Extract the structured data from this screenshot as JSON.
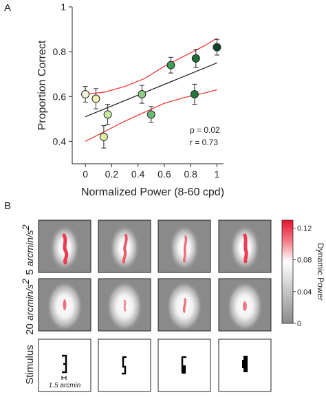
{
  "chart_data": {
    "type": "scatter",
    "panel_label": "A",
    "xlabel": "Normalized Power (8-60 cpd)",
    "ylabel": "Proportion Correct",
    "xlim": [
      -0.1,
      1.05
    ],
    "ylim": [
      0.3,
      1.0
    ],
    "xticks": [
      "0",
      "0.2",
      "0.4",
      "0.6",
      "0.8",
      "1"
    ],
    "yticks": [
      "0.4",
      "0.6",
      "0.8",
      "1"
    ],
    "points": [
      {
        "x": 0.0,
        "y": 0.61,
        "err": 0.035,
        "color": "#f1f4d6"
      },
      {
        "x": 0.08,
        "y": 0.59,
        "err": 0.045,
        "color": "#f0f0b4"
      },
      {
        "x": 0.14,
        "y": 0.42,
        "err": 0.05,
        "color": "#dcefa4"
      },
      {
        "x": 0.17,
        "y": 0.52,
        "err": 0.045,
        "color": "#c6e8a0"
      },
      {
        "x": 0.43,
        "y": 0.61,
        "err": 0.04,
        "color": "#8fcd86"
      },
      {
        "x": 0.5,
        "y": 0.52,
        "err": 0.035,
        "color": "#6dbb74"
      },
      {
        "x": 0.65,
        "y": 0.74,
        "err": 0.035,
        "color": "#3f9f56"
      },
      {
        "x": 0.83,
        "y": 0.61,
        "err": 0.045,
        "color": "#22773d"
      },
      {
        "x": 0.84,
        "y": 0.77,
        "err": 0.04,
        "color": "#1f6c39"
      },
      {
        "x": 1.0,
        "y": 0.82,
        "err": 0.035,
        "color": "#11452a"
      }
    ],
    "fit": {
      "x": [
        0,
        1
      ],
      "y": [
        0.51,
        0.75
      ],
      "color": "#222222"
    },
    "ci_upper": {
      "x": [
        0.0,
        0.15,
        0.3,
        0.45,
        0.6,
        0.75,
        0.9,
        1.0
      ],
      "y": [
        0.61,
        0.62,
        0.645,
        0.68,
        0.735,
        0.78,
        0.825,
        0.86
      ]
    },
    "ci_lower": {
      "x": [
        0.0,
        0.15,
        0.3,
        0.45,
        0.6,
        0.75,
        0.9,
        1.0
      ],
      "y": [
        0.4,
        0.445,
        0.49,
        0.53,
        0.57,
        0.595,
        0.615,
        0.63
      ]
    },
    "ci_color": "#ee3a3a",
    "stats": [
      "p = 0.02",
      "r = 0.73"
    ],
    "grid": false
  },
  "panel_b": {
    "label": "B",
    "rows": [
      {
        "label": "5 ",
        "unit": "arcmin/s",
        "sup": "2"
      },
      {
        "label": "20 ",
        "unit": "arcmin/s",
        "sup": "2"
      },
      {
        "label": "Stimulus",
        "unit": "",
        "sup": ""
      }
    ],
    "colorbar": {
      "title": "Dynamic Power",
      "ticks": [
        "0.12",
        "0.08",
        "0.04",
        "0"
      ],
      "max": 0.13
    },
    "scale_bar_label": "1.5 arcmin"
  }
}
